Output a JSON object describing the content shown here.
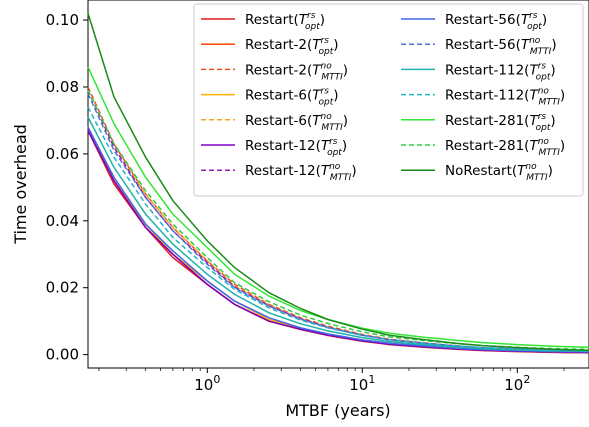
{
  "chart_data": {
    "type": "line",
    "title": "",
    "xlabel": "MTBF (years)",
    "ylabel": "Time overhead",
    "xscale": "log",
    "xlim": [
      0.17,
      290
    ],
    "ylim": [
      -0.004,
      0.106
    ],
    "yticks": [
      0.0,
      0.02,
      0.04,
      0.06,
      0.08,
      0.1
    ],
    "ytick_labels": [
      "0.00",
      "0.02",
      "0.04",
      "0.06",
      "0.08",
      "0.10"
    ],
    "xticks": [
      1,
      10,
      100
    ],
    "xtick_labels": [
      {
        "base": "10",
        "exp": "0"
      },
      {
        "base": "10",
        "exp": "1"
      },
      {
        "base": "10",
        "exp": "2"
      }
    ],
    "legend_position": "top-right",
    "grid": false,
    "x": [
      0.17,
      0.25,
      0.4,
      0.6,
      1.0,
      1.5,
      2.5,
      4,
      6,
      10,
      15,
      25,
      40,
      60,
      100,
      150,
      200,
      290
    ],
    "series": [
      {
        "name": "Restart",
        "sup": "rs",
        "sub": "opt",
        "color": "#e31a1c",
        "dash": "solid",
        "values": [
          0.067,
          0.051,
          0.038,
          0.029,
          0.021,
          0.015,
          0.01,
          0.0075,
          0.0057,
          0.004,
          0.003,
          0.0022,
          0.0016,
          0.0012,
          0.0009,
          0.0007,
          0.0006,
          0.0005
        ]
      },
      {
        "name": "Restart-2",
        "sup": "rs",
        "sub": "opt",
        "color": "#ff4500",
        "dash": "solid",
        "values": [
          0.067,
          0.052,
          0.038,
          0.03,
          0.021,
          0.015,
          0.01,
          0.0076,
          0.0058,
          0.0041,
          0.0031,
          0.0023,
          0.0017,
          0.0013,
          0.001,
          0.0008,
          0.0007,
          0.0006
        ]
      },
      {
        "name": "Restart-2",
        "sup": "no",
        "sub": "MTTI",
        "color": "#e8501c",
        "dash": "dashed",
        "values": [
          0.08,
          0.063,
          0.048,
          0.038,
          0.028,
          0.021,
          0.015,
          0.011,
          0.0085,
          0.006,
          0.0046,
          0.0035,
          0.0026,
          0.002,
          0.0016,
          0.0013,
          0.0011,
          0.001
        ]
      },
      {
        "name": "Restart-6",
        "sup": "rs",
        "sub": "opt",
        "color": "#ffb000",
        "dash": "solid",
        "values": [
          0.068,
          0.052,
          0.039,
          0.03,
          0.022,
          0.016,
          0.0105,
          0.0078,
          0.006,
          0.0042,
          0.0032,
          0.0024,
          0.0018,
          0.0014,
          0.001,
          0.0008,
          0.0007,
          0.0006
        ]
      },
      {
        "name": "Restart-6",
        "sup": "no",
        "sub": "MTTI",
        "color": "#f5a623",
        "dash": "dashed",
        "values": [
          0.079,
          0.062,
          0.048,
          0.038,
          0.028,
          0.0205,
          0.0148,
          0.0108,
          0.0083,
          0.0059,
          0.0045,
          0.0034,
          0.0026,
          0.002,
          0.0016,
          0.0013,
          0.0011,
          0.001
        ]
      },
      {
        "name": "Restart-12",
        "sup": "rs",
        "sub": "opt",
        "color": "#7b00c8",
        "dash": "solid",
        "values": [
          0.067,
          0.052,
          0.038,
          0.03,
          0.021,
          0.015,
          0.01,
          0.0076,
          0.0058,
          0.0041,
          0.0031,
          0.0023,
          0.0017,
          0.0013,
          0.001,
          0.0008,
          0.0007,
          0.0006
        ]
      },
      {
        "name": "Restart-12",
        "sup": "no",
        "sub": "MTTI",
        "color": "#9b1fb8",
        "dash": "dashed",
        "values": [
          0.079,
          0.062,
          0.047,
          0.037,
          0.0275,
          0.0202,
          0.0146,
          0.0107,
          0.0082,
          0.0058,
          0.0044,
          0.0034,
          0.0026,
          0.002,
          0.0016,
          0.0013,
          0.0011,
          0.001
        ]
      },
      {
        "name": "Restart-56",
        "sup": "rs",
        "sub": "opt",
        "color": "#4169e1",
        "dash": "solid",
        "values": [
          0.068,
          0.053,
          0.039,
          0.031,
          0.022,
          0.016,
          0.011,
          0.008,
          0.0062,
          0.0044,
          0.0034,
          0.0026,
          0.0019,
          0.0015,
          0.0012,
          0.001,
          0.0009,
          0.0008
        ]
      },
      {
        "name": "Restart-56",
        "sup": "no",
        "sub": "MTTI",
        "color": "#4a6fd8",
        "dash": "dashed",
        "values": [
          0.078,
          0.061,
          0.047,
          0.037,
          0.027,
          0.02,
          0.0145,
          0.0106,
          0.0081,
          0.0058,
          0.0045,
          0.0034,
          0.0026,
          0.0021,
          0.0017,
          0.0014,
          0.0012,
          0.0011
        ]
      },
      {
        "name": "Restart-112",
        "sup": "rs",
        "sub": "opt",
        "color": "#20b2aa",
        "dash": "solid",
        "values": [
          0.071,
          0.056,
          0.042,
          0.033,
          0.024,
          0.018,
          0.0125,
          0.0092,
          0.0071,
          0.0051,
          0.0039,
          0.003,
          0.0023,
          0.0018,
          0.0014,
          0.0012,
          0.0011,
          0.001
        ]
      },
      {
        "name": "Restart-112",
        "sup": "no",
        "sub": "MTTI",
        "color": "#1fb3c8",
        "dash": "dashed",
        "values": [
          0.074,
          0.059,
          0.045,
          0.035,
          0.026,
          0.0195,
          0.014,
          0.0103,
          0.008,
          0.0057,
          0.0044,
          0.0034,
          0.0026,
          0.0021,
          0.0017,
          0.0014,
          0.0013,
          0.0012
        ]
      },
      {
        "name": "Restart-281",
        "sup": "rs",
        "sub": "opt",
        "color": "#33e633",
        "dash": "solid",
        "values": [
          0.086,
          0.069,
          0.053,
          0.042,
          0.032,
          0.024,
          0.0175,
          0.0132,
          0.0105,
          0.0079,
          0.0064,
          0.0052,
          0.0043,
          0.0036,
          0.003,
          0.0026,
          0.0024,
          0.0022
        ]
      },
      {
        "name": "Restart-281",
        "sup": "no",
        "sub": "MTTI",
        "color": "#2ecc40",
        "dash": "dashed",
        "values": [
          0.079,
          0.063,
          0.049,
          0.039,
          0.029,
          0.0215,
          0.0158,
          0.0118,
          0.0093,
          0.0068,
          0.0053,
          0.0042,
          0.0033,
          0.0027,
          0.0022,
          0.0019,
          0.0017,
          0.0016
        ]
      },
      {
        "name": "NoRestart",
        "sup": "no",
        "sub": "MTTI",
        "color": "#1a8a1a",
        "dash": "solid",
        "values": [
          0.102,
          0.077,
          0.059,
          0.046,
          0.034,
          0.026,
          0.0185,
          0.0138,
          0.0105,
          0.0076,
          0.0058,
          0.0045,
          0.0034,
          0.0027,
          0.0021,
          0.0017,
          0.0015,
          0.0013
        ]
      }
    ]
  }
}
